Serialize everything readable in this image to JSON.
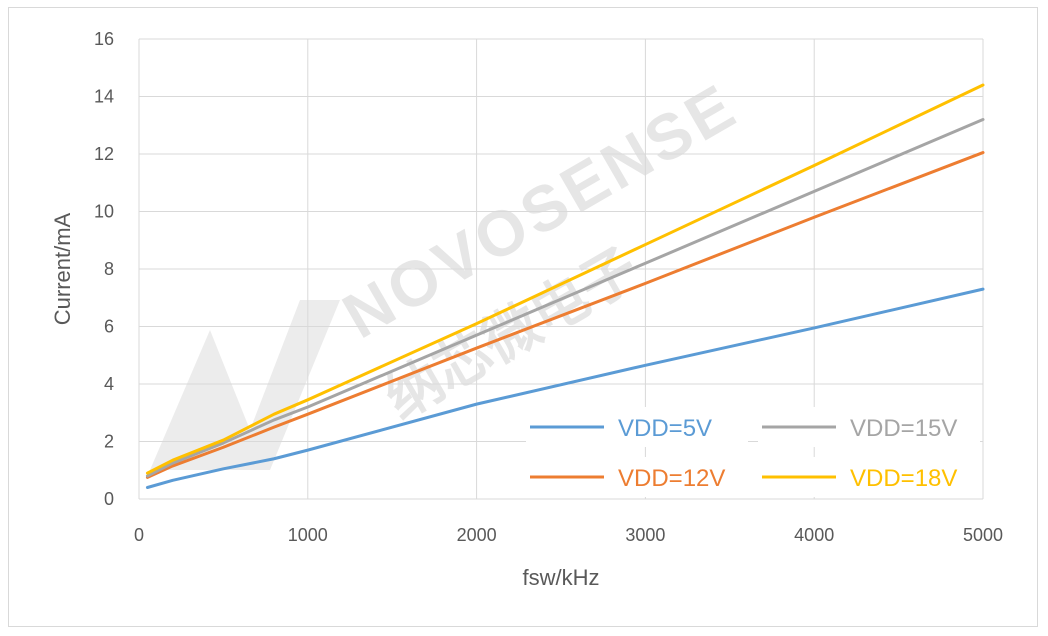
{
  "chart_data": {
    "type": "line",
    "title": "",
    "xlabel": "fsw/kHz",
    "ylabel": "Current/mA",
    "xlim": [
      0,
      5000
    ],
    "ylim": [
      0,
      16
    ],
    "xticks": [
      0,
      1000,
      2000,
      3000,
      4000,
      5000
    ],
    "yticks": [
      0,
      2,
      4,
      6,
      8,
      10,
      12,
      14,
      16
    ],
    "grid": true,
    "legend_position": "bottom-right",
    "x": [
      50,
      200,
      500,
      800,
      1000,
      2000,
      3000,
      4000,
      5000
    ],
    "series": [
      {
        "name": "VDD=5V",
        "color": "#5b9bd5",
        "values": [
          0.4,
          0.65,
          1.05,
          1.4,
          1.7,
          3.3,
          4.65,
          5.95,
          7.3
        ]
      },
      {
        "name": "VDD=12V",
        "color": "#ed7d31",
        "values": [
          0.75,
          1.15,
          1.8,
          2.5,
          2.95,
          5.25,
          7.5,
          9.8,
          12.05
        ]
      },
      {
        "name": "VDD=15V",
        "color": "#a5a5a5",
        "values": [
          0.8,
          1.25,
          1.95,
          2.75,
          3.2,
          5.7,
          8.2,
          10.7,
          13.2
        ]
      },
      {
        "name": "VDD=18V",
        "color": "#ffc000",
        "values": [
          0.9,
          1.35,
          2.05,
          2.95,
          3.45,
          6.1,
          8.85,
          11.6,
          14.4
        ]
      }
    ]
  },
  "watermark": {
    "brand": "NOVOSENSE",
    "cn_text": "纳芯微电子"
  }
}
